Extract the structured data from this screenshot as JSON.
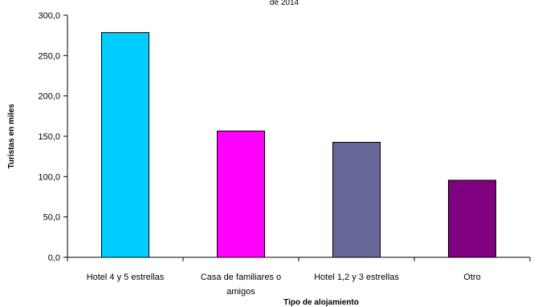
{
  "chart_data": {
    "type": "bar",
    "title": "de 2014",
    "xlabel": "Tipo de alojamiento",
    "ylabel": "Turistas en miles",
    "categories": [
      [
        "Hotel 4 y 5 estrellas"
      ],
      [
        "Casa de familiares o",
        "amigos"
      ],
      [
        "Hotel 1,2 y 3 estrellas"
      ],
      [
        "Otro"
      ]
    ],
    "values": [
      278.5,
      156.5,
      142.5,
      95.5
    ],
    "colors": [
      "#00ccff",
      "#ff00ff",
      "#666699",
      "#800080"
    ],
    "ylim": [
      0,
      300
    ],
    "yticks": [
      "0,0",
      "50,0",
      "100,0",
      "150,0",
      "200,0",
      "250,0",
      "300,0"
    ],
    "grid": false,
    "legend": "none"
  }
}
